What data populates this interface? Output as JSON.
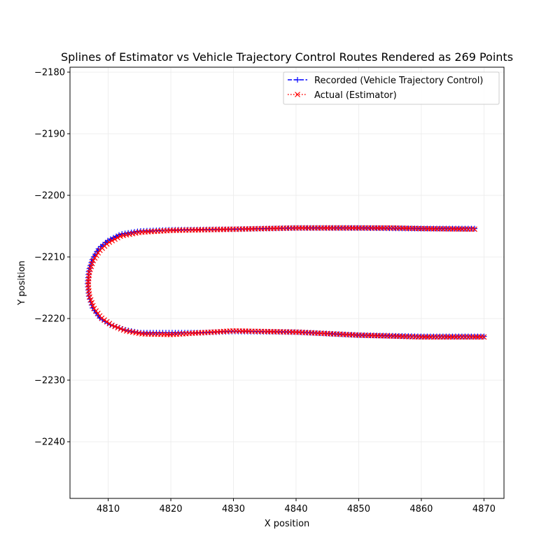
{
  "chart_data": {
    "type": "line",
    "title": "Splines of Estimator vs Vehicle Trajectory Control Routes Rendered as 269 Points",
    "xlabel": "X position",
    "ylabel": "Y position",
    "xlim": [
      4803.9,
      4873.2
    ],
    "ylim": [
      -2249.2,
      -2179.2
    ],
    "xticks": [
      4810,
      4820,
      4830,
      4840,
      4850,
      4860,
      4870
    ],
    "yticks": [
      -2180,
      -2190,
      -2200,
      -2210,
      -2220,
      -2230,
      -2240
    ],
    "xtick_labels": [
      "4810",
      "4820",
      "4830",
      "4840",
      "4850",
      "4860",
      "4870"
    ],
    "ytick_labels": [
      "−2180",
      "−2190",
      "−2200",
      "−2210",
      "−2220",
      "−2230",
      "−2240"
    ],
    "grid": true,
    "legend_position": "top-right",
    "series": [
      {
        "name": "Recorded (Vehicle Trajectory Control)",
        "color": "#0000ff",
        "linestyle": "dashed",
        "marker": "+",
        "knots": [
          [
            4868.5,
            -2205.4
          ],
          [
            4860,
            -2205.4
          ],
          [
            4850,
            -2205.3
          ],
          [
            4840,
            -2205.3
          ],
          [
            4830,
            -2205.5
          ],
          [
            4820,
            -2205.6
          ],
          [
            4815,
            -2205.8
          ],
          [
            4812,
            -2206.3
          ],
          [
            4810,
            -2207.3
          ],
          [
            4808.5,
            -2208.6
          ],
          [
            4807.5,
            -2210.3
          ],
          [
            4806.9,
            -2212.2
          ],
          [
            4806.7,
            -2214.3
          ],
          [
            4806.9,
            -2216.4
          ],
          [
            4807.5,
            -2218.3
          ],
          [
            4808.6,
            -2219.9
          ],
          [
            4810.3,
            -2221.0
          ],
          [
            4812.5,
            -2221.8
          ],
          [
            4815,
            -2222.3
          ],
          [
            4820,
            -2222.3
          ],
          [
            4825,
            -2222.3
          ],
          [
            4830,
            -2222.1
          ],
          [
            4840,
            -2222.2
          ],
          [
            4850,
            -2222.7
          ],
          [
            4860,
            -2222.9
          ],
          [
            4870,
            -2222.9
          ]
        ]
      },
      {
        "name": "Actual (Estimator)",
        "color": "#ff0000",
        "linestyle": "dotted",
        "marker": "x",
        "knots": [
          [
            4868.5,
            -2205.5
          ],
          [
            4860,
            -2205.4
          ],
          [
            4855.5,
            -2205.3
          ],
          [
            4850,
            -2205.3
          ],
          [
            4840,
            -2205.3
          ],
          [
            4830,
            -2205.5
          ],
          [
            4820,
            -2205.7
          ],
          [
            4815,
            -2206.0
          ],
          [
            4812,
            -2206.6
          ],
          [
            4810,
            -2207.7
          ],
          [
            4808.6,
            -2209.0
          ],
          [
            4807.6,
            -2210.6
          ],
          [
            4807.0,
            -2212.4
          ],
          [
            4806.8,
            -2214.4
          ],
          [
            4807.0,
            -2216.4
          ],
          [
            4807.7,
            -2218.3
          ],
          [
            4808.9,
            -2219.9
          ],
          [
            4810.6,
            -2221.1
          ],
          [
            4812.8,
            -2222.0
          ],
          [
            4815.5,
            -2222.5
          ],
          [
            4820,
            -2222.6
          ],
          [
            4825,
            -2222.3
          ],
          [
            4830,
            -2222.0
          ],
          [
            4840,
            -2222.2
          ],
          [
            4850,
            -2222.7
          ],
          [
            4860,
            -2223.0
          ],
          [
            4870,
            -2223.0
          ]
        ]
      }
    ]
  }
}
